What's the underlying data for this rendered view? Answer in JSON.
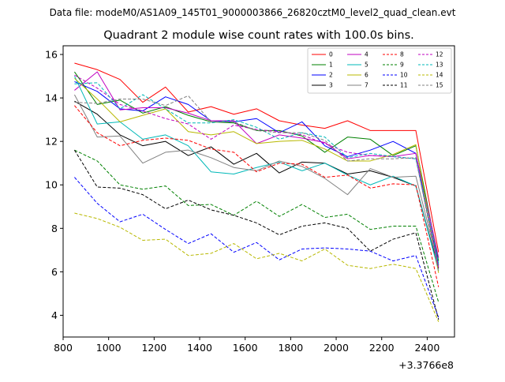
{
  "header": {
    "data_file": "Data file: modeM0/AS1A09_145T01_9000003866_26820cztM0_level2_quad_clean.evt"
  },
  "chart_data": {
    "type": "line",
    "title": "Quadrant 2 module wise count rates with 100.0s bins.",
    "xlabel": "",
    "ylabel": "",
    "x_offset_label": "+3.3766e8",
    "xlim": [
      800,
      2520
    ],
    "ylim": [
      3.0,
      16.4
    ],
    "x_ticks": [
      800,
      1000,
      1200,
      1400,
      1600,
      1800,
      2000,
      2200,
      2400
    ],
    "x_tick_labels": [
      "800",
      "1000",
      "1200",
      "1400",
      "1600",
      "1800",
      "2000",
      "2200",
      "2400"
    ],
    "y_ticks": [
      4,
      6,
      8,
      10,
      12,
      14,
      16
    ],
    "y_tick_labels": [
      "4",
      "6",
      "8",
      "10",
      "12",
      "14",
      "16"
    ],
    "legend_position": "top-right",
    "x": [
      850,
      950,
      1050,
      1150,
      1250,
      1350,
      1450,
      1550,
      1650,
      1750,
      1850,
      1950,
      2050,
      2150,
      2250,
      2350,
      2450
    ],
    "series": [
      {
        "name": "0",
        "color": "#ff0000",
        "dash": "solid",
        "values": [
          15.6,
          15.3,
          14.85,
          13.8,
          14.5,
          13.35,
          13.6,
          13.25,
          13.5,
          12.95,
          12.75,
          12.6,
          12.95,
          12.5,
          12.5,
          12.5,
          6.9
        ]
      },
      {
        "name": "1",
        "color": "#008000",
        "dash": "solid",
        "values": [
          15.2,
          13.7,
          13.9,
          13.3,
          13.6,
          13.2,
          12.9,
          12.85,
          12.5,
          12.5,
          12.25,
          11.5,
          12.2,
          12.1,
          11.35,
          11.8,
          6.5
        ]
      },
      {
        "name": "2",
        "color": "#0000ff",
        "dash": "solid",
        "values": [
          14.75,
          14.3,
          13.5,
          13.4,
          14.05,
          13.7,
          12.95,
          12.9,
          13.05,
          12.4,
          12.9,
          11.8,
          11.3,
          11.6,
          12.0,
          11.45,
          6.3
        ]
      },
      {
        "name": "3",
        "color": "#000000",
        "dash": "solid",
        "values": [
          13.85,
          13.25,
          12.3,
          11.8,
          12.0,
          11.35,
          11.75,
          10.95,
          11.45,
          10.55,
          11.05,
          11.0,
          10.5,
          10.65,
          10.35,
          9.95,
          6.15
        ]
      },
      {
        "name": "4",
        "color": "#c000c0",
        "dash": "solid",
        "values": [
          14.35,
          15.2,
          13.45,
          13.55,
          13.55,
          13.3,
          12.95,
          12.95,
          11.9,
          12.3,
          12.15,
          11.95,
          11.2,
          11.35,
          11.3,
          11.45,
          6.65
        ]
      },
      {
        "name": "5",
        "color": "#00b8b8",
        "dash": "solid",
        "values": [
          15.0,
          12.8,
          12.9,
          12.1,
          12.3,
          11.8,
          10.6,
          10.5,
          10.8,
          11.05,
          10.65,
          11.0,
          10.45,
          10.0,
          10.4,
          9.95,
          6.05
        ]
      },
      {
        "name": "6",
        "color": "#b8b800",
        "dash": "solid",
        "values": [
          14.9,
          13.95,
          12.9,
          13.2,
          13.5,
          12.45,
          12.3,
          12.45,
          11.9,
          12.0,
          12.05,
          11.65,
          11.1,
          11.1,
          11.4,
          11.85,
          5.95
        ]
      },
      {
        "name": "7",
        "color": "#808080",
        "dash": "solid",
        "values": [
          14.15,
          12.2,
          12.25,
          11.0,
          11.5,
          11.6,
          11.25,
          10.8,
          10.65,
          11.1,
          10.85,
          10.3,
          9.55,
          10.75,
          10.35,
          10.4,
          6.25
        ]
      },
      {
        "name": "8",
        "color": "#ff0000",
        "dash": "dashed",
        "values": [
          13.65,
          12.4,
          11.8,
          12.05,
          12.15,
          12.05,
          11.65,
          11.5,
          10.6,
          11.0,
          10.95,
          10.35,
          10.45,
          9.85,
          10.05,
          10.0,
          5.3
        ]
      },
      {
        "name": "9",
        "color": "#008000",
        "dash": "dashed",
        "values": [
          11.6,
          11.1,
          10.0,
          9.8,
          9.95,
          9.05,
          9.1,
          8.6,
          9.25,
          8.55,
          9.1,
          8.5,
          8.65,
          7.95,
          8.1,
          8.1,
          4.6
        ]
      },
      {
        "name": "10",
        "color": "#0000ff",
        "dash": "dashed",
        "values": [
          10.35,
          9.15,
          8.3,
          8.65,
          7.95,
          7.3,
          7.75,
          6.9,
          7.35,
          6.55,
          7.05,
          7.1,
          7.05,
          6.95,
          6.5,
          6.75,
          3.9
        ]
      },
      {
        "name": "11",
        "color": "#000000",
        "dash": "dashed",
        "values": [
          11.6,
          9.9,
          9.85,
          9.55,
          8.9,
          9.3,
          8.85,
          8.6,
          8.25,
          7.7,
          8.1,
          8.25,
          8.0,
          6.95,
          7.5,
          7.8,
          3.8
        ]
      },
      {
        "name": "12",
        "color": "#c000c0",
        "dash": "dashed",
        "values": [
          15.05,
          14.45,
          13.7,
          13.4,
          13.05,
          12.8,
          12.1,
          12.75,
          12.55,
          12.45,
          12.3,
          11.9,
          11.5,
          11.35,
          11.3,
          11.2,
          6.2
        ]
      },
      {
        "name": "13",
        "color": "#00b8b8",
        "dash": "dashed",
        "values": [
          14.65,
          14.7,
          13.5,
          14.15,
          13.5,
          12.85,
          12.85,
          13.0,
          12.65,
          12.1,
          12.4,
          12.2,
          11.25,
          11.45,
          11.3,
          11.2,
          6.4
        ]
      },
      {
        "name": "14",
        "color": "#b8b800",
        "dash": "dashed",
        "values": [
          8.7,
          8.45,
          8.05,
          7.45,
          7.5,
          6.75,
          6.85,
          7.3,
          6.6,
          6.85,
          6.5,
          7.05,
          6.3,
          6.15,
          6.35,
          6.15,
          3.7
        ]
      },
      {
        "name": "15",
        "color": "#808080",
        "dash": "dashed",
        "values": [
          13.8,
          13.75,
          13.95,
          13.95,
          13.65,
          14.1,
          12.9,
          12.9,
          12.5,
          12.4,
          12.4,
          12.05,
          11.1,
          11.2,
          11.2,
          11.25,
          6.0
        ]
      }
    ]
  }
}
